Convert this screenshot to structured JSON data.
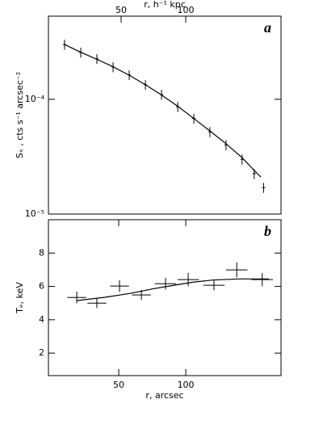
{
  "chart_data": [
    {
      "type": "scatter",
      "panel_label": "a",
      "ylabel": "Sₓ , cts s⁻¹ arcsec⁻²",
      "x2label": "r, h⁻¹ kpc",
      "ylog": true,
      "xlim": [
        -2.4,
        171
      ],
      "x2lim": [
        -6.25,
        173.75
      ],
      "x2ticks": [
        50,
        100
      ],
      "ylim": [
        1e-05,
        0.00053
      ],
      "yticks": [
        {
          "value": 1e-05,
          "label": "10⁻⁵"
        },
        {
          "value": 0.0001,
          "label": "10⁻⁴"
        }
      ],
      "x": [
        9.6,
        21.7,
        33.7,
        45.8,
        57.8,
        69.9,
        81.9,
        94,
        106,
        118,
        130,
        142,
        151,
        158
      ],
      "values": [
        0.0003,
        0.000256,
        0.000225,
        0.000191,
        0.000163,
        0.000134,
        0.00011,
        8.6e-05,
        6.8e-05,
        5.2e-05,
        4e-05,
        3e-05,
        2.25e-05,
        1.7e-05
      ],
      "errors": [
        3e-05,
        2.6e-05,
        2.2e-05,
        1.9e-05,
        1.6e-05,
        1.3e-05,
        1.1e-05,
        8.6e-06,
        6.8e-06,
        5.2e-06,
        4e-06,
        3e-06,
        2.3e-06,
        1.7e-06
      ],
      "model": {
        "x": [
          9.6,
          21.7,
          33.7,
          45.8,
          57.8,
          69.9,
          81.9,
          94,
          106,
          118,
          130,
          142,
          151,
          156
        ],
        "values": [
          0.0003,
          0.000257,
          0.000223,
          0.000192,
          0.000162,
          0.000134,
          0.000109,
          8.7e-05,
          6.8e-05,
          5.3e-05,
          4.1e-05,
          3.1e-05,
          2.4e-05,
          2.1e-05
        ]
      },
      "color": "#000000"
    },
    {
      "type": "scatter",
      "panel_label": "b",
      "ylabel": "Tₑ, keV",
      "xlabel": "r, arcsec",
      "xlim": [
        -2.4,
        171
      ],
      "xticks": [
        50,
        100
      ],
      "ylim": [
        0.65,
        10
      ],
      "yticks": [
        2,
        4,
        6,
        8
      ],
      "x": [
        18.7,
        33.7,
        50.6,
        66.9,
        84.9,
        101.8,
        121,
        138,
        157
      ],
      "xerrors": [
        7,
        7,
        7,
        7,
        8,
        8,
        8,
        8,
        8
      ],
      "values": [
        5.34,
        5.0,
        6.02,
        5.49,
        6.16,
        6.41,
        6.07,
        6.99,
        6.41
      ],
      "errors": [
        0.35,
        0.3,
        0.35,
        0.3,
        0.35,
        0.4,
        0.3,
        0.45,
        0.4
      ],
      "model": {
        "x": [
          18.7,
          40,
          60,
          75,
          90,
          105,
          120,
          140,
          162
        ],
        "values": [
          5.15,
          5.35,
          5.6,
          5.85,
          6.05,
          6.25,
          6.38,
          6.45,
          6.45
        ]
      },
      "color": "#000000"
    }
  ]
}
